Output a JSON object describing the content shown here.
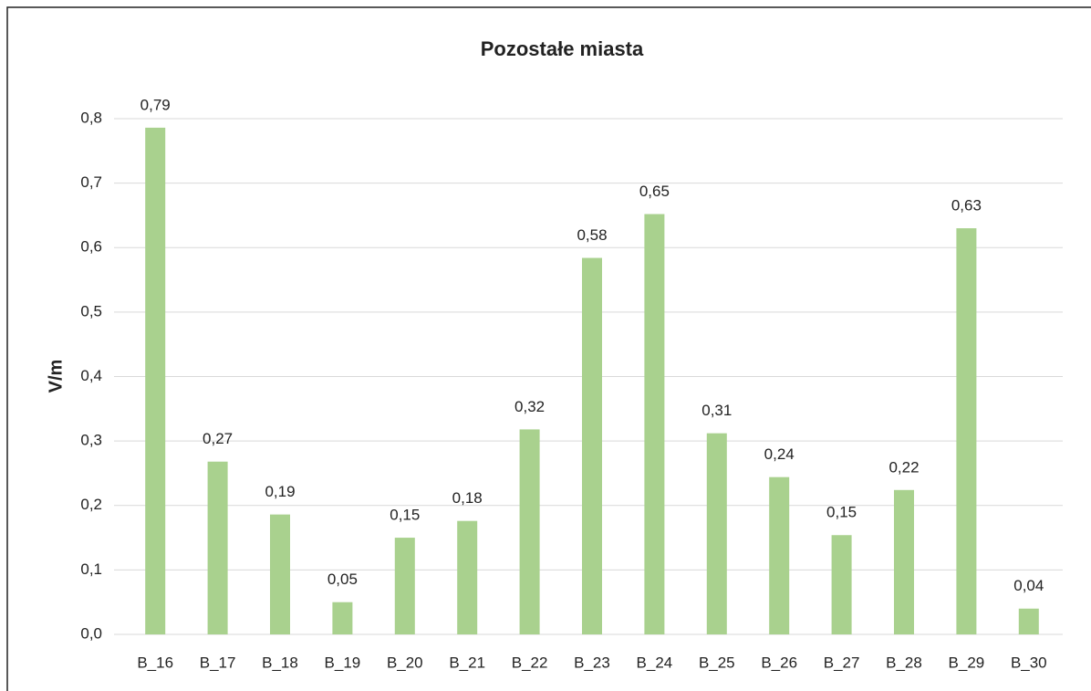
{
  "chart_data": {
    "type": "bar",
    "title": "Pozostałe miasta",
    "y_label": "V/m",
    "categories": [
      "B_16",
      "B_17",
      "B_18",
      "B_19",
      "B_20",
      "B_21",
      "B_22",
      "B_23",
      "B_24",
      "B_25",
      "B_26",
      "B_27",
      "B_28",
      "B_29",
      "B_30"
    ],
    "values": [
      0.786,
      0.268,
      0.186,
      0.05,
      0.15,
      0.176,
      0.318,
      0.584,
      0.652,
      0.312,
      0.244,
      0.154,
      0.224,
      0.63,
      0.04
    ],
    "value_labels": [
      "0,79",
      "0,27",
      "0,19",
      "0,05",
      "0,15",
      "0,18",
      "0,32",
      "0,58",
      "0,65",
      "0,31",
      "0,24",
      "0,15",
      "0,22",
      "0,63",
      "0,04"
    ],
    "color": "#a9d18e",
    "ylim": [
      0,
      0.8
    ],
    "yticks": [
      {
        "value": 0,
        "label": "0,0"
      },
      {
        "value": 0.1,
        "label": "0,1"
      },
      {
        "value": 0.2,
        "label": "0,2"
      },
      {
        "value": 0.3,
        "label": "0,3"
      },
      {
        "value": 0.4,
        "label": "0,4"
      },
      {
        "value": 0.5,
        "label": "0,5"
      },
      {
        "value": 0.6,
        "label": "0,6"
      },
      {
        "value": 0.7,
        "label": "0,7"
      },
      {
        "value": 0.8,
        "label": "0,8"
      }
    ],
    "grid": true
  }
}
